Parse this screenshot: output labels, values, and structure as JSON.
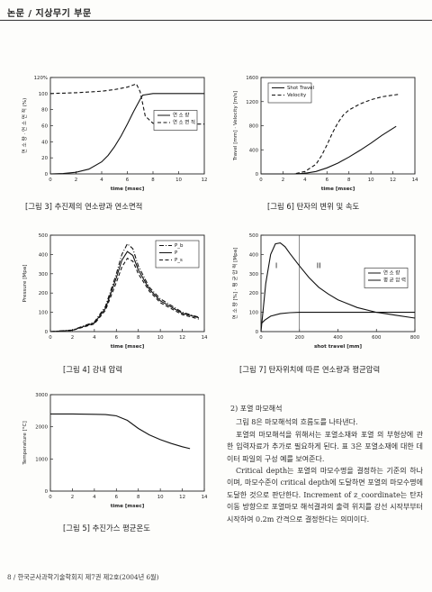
{
  "header": {
    "title": "논문 / 지상무기 부문"
  },
  "captions": {
    "fig3": "[그림 3]   추진제의 연소량과 연소면적",
    "fig6": "[그림 6]   탄자의 변위 및 속도",
    "fig4": "[그림 4]   강내 압력",
    "fig7": "[그림 7]   탄자위치에 따른 연소량과 평균압력",
    "fig5": "[그림 5]   추진가스 평균온도"
  },
  "section_title": "2) 포열 마모해석",
  "paragraphs": [
    "그림 8은 마모해석의 흐름도를 나타낸다.",
    "포열의 마모해석을 위해서는 포열소재와 포열 의 부형상에 관한 입력자료가 추가로 필요하게 된다. 표 3은 포열소재에 대한 데이터 파일의 구성 예를 보여준다.",
    "Critical depth는 포열의 마모수명을 결정하는 기준의 하나이며, 마모수준이 critical depth에 도달하면 포열의 마모수명에 도달한 것으로 판단한다. Increment of z_coordinate는 탄자이동 방향으로 포열마모 해석결과의 출력 위치를 강선 시작부부터 시작하여 0.2m 간격으로 결정한다는 의미이다."
  ],
  "footer": "8 / 한국군사과학기술학회지 제7권 제2호(2004년 6월)",
  "chart_data": [
    {
      "id": "fig3",
      "type": "line",
      "xlabel": "time [msec]",
      "ylabel": "연 소 량 · 연 소 면 적 (%)",
      "xlim": [
        0,
        12
      ],
      "ylim": [
        0,
        120
      ],
      "xticks": [
        0,
        2,
        4,
        6,
        8,
        10,
        12
      ],
      "yticks": [
        0,
        20,
        40,
        60,
        80,
        100,
        120
      ],
      "ytick_labels": [
        "0",
        "20",
        "40",
        "60",
        "80",
        "100",
        "120%"
      ],
      "legend": [
        "연 소 량",
        "연 소 면 적"
      ],
      "legend_position": "center-right",
      "series": [
        {
          "name": "연 소 량",
          "style": "solid",
          "x": [
            0,
            1,
            2,
            3,
            4,
            4.5,
            5,
            5.5,
            6,
            6.5,
            7,
            7.2,
            8,
            10,
            12
          ],
          "y": [
            0,
            0.5,
            2,
            6,
            15,
            23,
            34,
            47,
            62,
            78,
            93,
            98,
            100,
            100,
            100
          ]
        },
        {
          "name": "연 소 면 적",
          "style": "dashed",
          "x": [
            0,
            2,
            4,
            5,
            6,
            6.7,
            7.0,
            7.4,
            8,
            10,
            12
          ],
          "y": [
            100,
            101,
            103,
            105,
            108,
            112,
            102,
            72,
            63,
            62,
            62
          ]
        }
      ]
    },
    {
      "id": "fig6",
      "type": "line",
      "xlabel": "time [msec]",
      "ylabel": "Travel [mm] · Velocity [m/s]",
      "xlim": [
        0,
        14
      ],
      "ylim": [
        0,
        1600
      ],
      "xticks": [
        0,
        2,
        4,
        6,
        8,
        10,
        12,
        14
      ],
      "yticks": [
        0,
        400,
        800,
        1200,
        1600
      ],
      "legend": [
        "Shot Travel",
        "Velocity"
      ],
      "legend_position": "top-left",
      "series": [
        {
          "name": "Shot Travel",
          "style": "solid",
          "x": [
            0,
            3,
            4,
            5,
            6,
            7,
            8,
            9,
            10,
            11,
            12.3
          ],
          "y": [
            0,
            0,
            10,
            40,
            100,
            180,
            280,
            390,
            510,
            640,
            790
          ]
        },
        {
          "name": "Velocity",
          "style": "dashed",
          "x": [
            0,
            3,
            4,
            5,
            5.5,
            6,
            6.5,
            7,
            7.5,
            8,
            9,
            10,
            11,
            12.5
          ],
          "y": [
            0,
            0,
            40,
            160,
            300,
            480,
            680,
            850,
            980,
            1060,
            1160,
            1230,
            1280,
            1320
          ]
        }
      ]
    },
    {
      "id": "fig4",
      "type": "line",
      "xlabel": "time [msec]",
      "ylabel": "Pressure [Mpa]",
      "xlim": [
        0,
        14
      ],
      "ylim": [
        0,
        500
      ],
      "xticks": [
        0,
        2,
        4,
        6,
        8,
        10,
        12,
        14
      ],
      "yticks": [
        0,
        100,
        200,
        300,
        400,
        500
      ],
      "legend": [
        "P_b",
        "P",
        "P_s"
      ],
      "legend_position": "top-right",
      "series": [
        {
          "name": "P_b",
          "style": "dashdot",
          "x": [
            0,
            2,
            4,
            5,
            6,
            6.5,
            7,
            7.5,
            8,
            9,
            10,
            12,
            13.5
          ],
          "y": [
            0,
            8,
            50,
            130,
            300,
            400,
            455,
            430,
            340,
            230,
            170,
            100,
            75
          ]
        },
        {
          "name": "P",
          "style": "solid",
          "x": [
            0,
            2,
            4,
            5,
            6,
            6.5,
            7,
            7.5,
            8,
            9,
            10,
            12,
            13.5
          ],
          "y": [
            0,
            7,
            45,
            120,
            280,
            370,
            415,
            395,
            320,
            220,
            160,
            95,
            72
          ]
        },
        {
          "name": "P_s",
          "style": "dashed",
          "x": [
            0,
            2,
            4,
            5,
            6,
            6.5,
            7,
            7.5,
            8,
            9,
            10,
            12,
            13.5
          ],
          "y": [
            0,
            6,
            40,
            110,
            255,
            335,
            380,
            365,
            300,
            210,
            150,
            88,
            65
          ]
        }
      ]
    },
    {
      "id": "fig7",
      "type": "line",
      "xlabel": "shot travel [mm]",
      "ylabel": "연 소 량 [%] · 평 균 압 력 [Mpa]",
      "xlim": [
        0,
        800
      ],
      "ylim": [
        0,
        500
      ],
      "xticks": [
        0,
        200,
        400,
        600,
        800
      ],
      "yticks": [
        0,
        100,
        200,
        300,
        400,
        500
      ],
      "legend": [
        "연 소 량",
        "평 균 압 력"
      ],
      "legend_position": "center-right",
      "annotations": [
        {
          "text": "I",
          "x": 80,
          "y": 330
        },
        {
          "text": "II",
          "x": 300,
          "y": 330
        }
      ],
      "divider_x": 200,
      "series": [
        {
          "name": "연 소 량",
          "style": "solid",
          "x": [
            0,
            20,
            50,
            100,
            150,
            200,
            250,
            300,
            400,
            800
          ],
          "y": [
            40,
            60,
            80,
            93,
            98,
            100,
            100,
            100,
            100,
            100
          ]
        },
        {
          "name": "평 균 압 력",
          "style": "solid",
          "x": [
            0,
            25,
            50,
            75,
            100,
            125,
            150,
            200,
            250,
            300,
            350,
            400,
            500,
            600,
            700,
            800
          ],
          "y": [
            0,
            250,
            400,
            455,
            460,
            440,
            405,
            340,
            280,
            230,
            195,
            165,
            125,
            100,
            85,
            70
          ]
        }
      ]
    },
    {
      "id": "fig5",
      "type": "line",
      "xlabel": "time [msec]",
      "ylabel": "Temperature [°C]",
      "xlim": [
        0,
        14
      ],
      "ylim": [
        0,
        3000
      ],
      "xticks": [
        0,
        2,
        4,
        6,
        8,
        10,
        12,
        14
      ],
      "yticks": [
        0,
        1000,
        2000,
        3000
      ],
      "series": [
        {
          "name": "",
          "style": "solid",
          "x": [
            0,
            2,
            4,
            5,
            6,
            7,
            8,
            9,
            10,
            11,
            12,
            12.7
          ],
          "y": [
            2400,
            2400,
            2390,
            2380,
            2340,
            2200,
            1950,
            1750,
            1600,
            1480,
            1380,
            1320
          ]
        }
      ]
    }
  ]
}
